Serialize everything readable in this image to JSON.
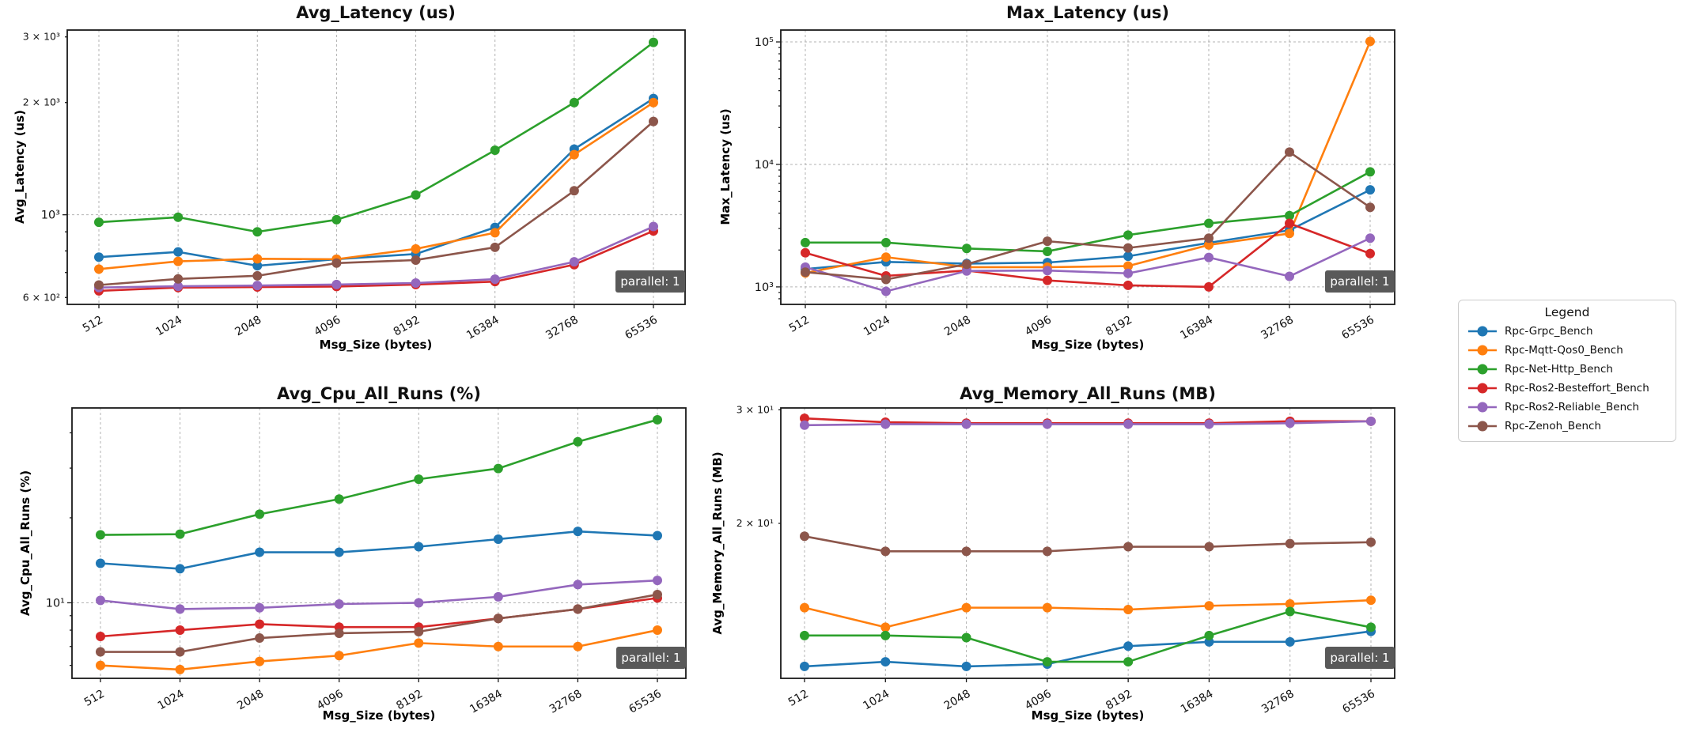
{
  "figure": {
    "background": "#ffffff",
    "title_color": "#1f3d99",
    "axis_color": "#1a1a1a",
    "grid_color": "#b3b3b3"
  },
  "annotation_badge": {
    "text": "parallel: 1",
    "bg": "#595959",
    "fg": "#ffffff"
  },
  "legend": {
    "title": "Legend",
    "entries": [
      {
        "label": "Rpc-Grpc_Bench",
        "color": "#1f77b4"
      },
      {
        "label": "Rpc-Mqtt-Qos0_Bench",
        "color": "#ff7f0e"
      },
      {
        "label": "Rpc-Net-Http_Bench",
        "color": "#2ca02c"
      },
      {
        "label": "Rpc-Ros2-Besteffort_Bench",
        "color": "#d62728"
      },
      {
        "label": "Rpc-Ros2-Reliable_Bench",
        "color": "#9467bd"
      },
      {
        "label": "Rpc-Zenoh_Bench",
        "color": "#8c564b"
      }
    ]
  },
  "chart_data": [
    {
      "type": "line",
      "title": "Avg_Latency (us)",
      "xlabel": "Msg_Size (bytes)",
      "ylabel": "Avg_Latency (us)",
      "x_categories": [
        "512",
        "1024",
        "2048",
        "4096",
        "8192",
        "16384",
        "32768",
        "65536"
      ],
      "yscale": "log",
      "ylim": [
        575,
        3130
      ],
      "yticks": [
        {
          "value": 3000,
          "label": "3 × 10³",
          "minor": true
        },
        {
          "value": 2000,
          "label": "2 × 10³",
          "minor": true
        },
        {
          "value": 1000,
          "label": "10³",
          "minor": false
        },
        {
          "value": 600,
          "label": "6 × 10²",
          "minor": true
        }
      ],
      "grid": "major-dashed",
      "annotation": "parallel: 1",
      "series": [
        {
          "name": "Rpc-Grpc_Bench",
          "color": "#1f77b4",
          "values": [
            770,
            795,
            730,
            760,
            785,
            925,
            1500,
            2050
          ]
        },
        {
          "name": "Rpc-Mqtt-Qos0_Bench",
          "color": "#ff7f0e",
          "values": [
            715,
            750,
            762,
            760,
            810,
            895,
            1450,
            2000
          ]
        },
        {
          "name": "Rpc-Net-Http_Bench",
          "color": "#2ca02c",
          "values": [
            955,
            985,
            900,
            970,
            1130,
            1490,
            2000,
            2900
          ]
        },
        {
          "name": "Rpc-Ros2-Besteffort_Bench",
          "color": "#d62728",
          "values": [
            625,
            638,
            640,
            642,
            650,
            662,
            735,
            905
          ]
        },
        {
          "name": "Rpc-Ros2-Reliable_Bench",
          "color": "#9467bd",
          "values": [
            638,
            643,
            646,
            650,
            656,
            672,
            748,
            930
          ]
        },
        {
          "name": "Rpc-Zenoh_Bench",
          "color": "#8c564b",
          "values": [
            648,
            673,
            686,
            742,
            756,
            818,
            1160,
            1780
          ]
        }
      ]
    },
    {
      "type": "line",
      "title": "Max_Latency (us)",
      "xlabel": "Msg_Size (bytes)",
      "ylabel": "Max_Latency (us)",
      "x_categories": [
        "512",
        "1024",
        "2048",
        "4096",
        "8192",
        "16384",
        "32768",
        "65536"
      ],
      "yscale": "log",
      "ylim": [
        720,
        125000
      ],
      "yticks": [
        {
          "value": 100000,
          "label": "10⁵",
          "minor": false
        },
        {
          "value": 10000,
          "label": "10⁴",
          "minor": false
        },
        {
          "value": 1000,
          "label": "10³",
          "minor": false
        }
      ],
      "grid": "major-dashed",
      "annotation": "parallel: 1",
      "series": [
        {
          "name": "Rpc-Grpc_Bench",
          "color": "#1f77b4",
          "values": [
            1400,
            1600,
            1550,
            1580,
            1780,
            2290,
            2900,
            6200
          ]
        },
        {
          "name": "Rpc-Mqtt-Qos0_Bench",
          "color": "#ff7f0e",
          "values": [
            1300,
            1750,
            1450,
            1450,
            1480,
            2200,
            2730,
            101000
          ]
        },
        {
          "name": "Rpc-Net-Http_Bench",
          "color": "#2ca02c",
          "values": [
            2300,
            2300,
            2060,
            1950,
            2650,
            3300,
            3820,
            8700
          ]
        },
        {
          "name": "Rpc-Ros2-Besteffort_Bench",
          "color": "#d62728",
          "values": [
            1900,
            1230,
            1360,
            1130,
            1030,
            1000,
            3300,
            1870
          ]
        },
        {
          "name": "Rpc-Ros2-Reliable_Bench",
          "color": "#9467bd",
          "values": [
            1450,
            920,
            1350,
            1360,
            1290,
            1740,
            1220,
            2500
          ]
        },
        {
          "name": "Rpc-Zenoh_Bench",
          "color": "#8c564b",
          "values": [
            1320,
            1150,
            1530,
            2360,
            2080,
            2500,
            12600,
            4460
          ]
        }
      ]
    },
    {
      "type": "line",
      "title": "Avg_Cpu_All_Runs (%)",
      "xlabel": "Msg_Size (bytes)",
      "ylabel": "Avg_Cpu_All_Runs (%)",
      "x_categories": [
        "512",
        "1024",
        "2048",
        "4096",
        "8192",
        "16384",
        "32768",
        "65536"
      ],
      "yscale": "log",
      "ylim": [
        5.4,
        49
      ],
      "yticks": [
        {
          "value": 10,
          "label": "10¹",
          "minor": false
        }
      ],
      "grid": "major-dashed",
      "annotation": "parallel: 1",
      "series": [
        {
          "name": "Rpc-Grpc_Bench",
          "color": "#1f77b4",
          "values": [
            13.8,
            13.2,
            15.1,
            15.1,
            15.8,
            16.8,
            17.9,
            17.3
          ]
        },
        {
          "name": "Rpc-Mqtt-Qos0_Bench",
          "color": "#ff7f0e",
          "values": [
            6.0,
            5.8,
            6.2,
            6.5,
            7.2,
            7.0,
            7.0,
            8.0
          ]
        },
        {
          "name": "Rpc-Net-Http_Bench",
          "color": "#2ca02c",
          "values": [
            17.4,
            17.5,
            20.6,
            23.3,
            27.4,
            29.9,
            37.2,
            44.5
          ]
        },
        {
          "name": "Rpc-Ros2-Besteffort_Bench",
          "color": "#d62728",
          "values": [
            7.6,
            8.0,
            8.4,
            8.2,
            8.2,
            8.8,
            9.5,
            10.4
          ]
        },
        {
          "name": "Rpc-Ros2-Reliable_Bench",
          "color": "#9467bd",
          "values": [
            10.2,
            9.5,
            9.6,
            9.9,
            10.0,
            10.5,
            11.6,
            12.0
          ]
        },
        {
          "name": "Rpc-Zenoh_Bench",
          "color": "#8c564b",
          "values": [
            6.7,
            6.7,
            7.5,
            7.8,
            7.9,
            8.8,
            9.5,
            10.7
          ]
        }
      ]
    },
    {
      "type": "line",
      "title": "Avg_Memory_All_Runs (MB)",
      "xlabel": "Msg_Size (bytes)",
      "ylabel": "Avg_Memory_All_Runs (MB)",
      "x_categories": [
        "512",
        "1024",
        "2048",
        "4096",
        "8192",
        "16384",
        "32768",
        "65536"
      ],
      "yscale": "log",
      "ylim": [
        11.5,
        30.2
      ],
      "yticks": [
        {
          "value": 30,
          "label": "3 × 10¹",
          "minor": true
        },
        {
          "value": 20,
          "label": "2 × 10¹",
          "minor": true
        }
      ],
      "grid": "major-dashed",
      "annotation": "parallel: 1",
      "series": [
        {
          "name": "Rpc-Grpc_Bench",
          "color": "#1f77b4",
          "values": [
            12.0,
            12.2,
            12.0,
            12.1,
            12.9,
            13.1,
            13.1,
            13.6
          ]
        },
        {
          "name": "Rpc-Mqtt-Qos0_Bench",
          "color": "#ff7f0e",
          "values": [
            14.8,
            13.8,
            14.8,
            14.8,
            14.7,
            14.9,
            15.0,
            15.2
          ]
        },
        {
          "name": "Rpc-Net-Http_Bench",
          "color": "#2ca02c",
          "values": [
            13.4,
            13.4,
            13.3,
            12.2,
            12.2,
            13.4,
            14.6,
            13.8
          ]
        },
        {
          "name": "Rpc-Ros2-Besteffort_Bench",
          "color": "#d62728",
          "values": [
            29.1,
            28.7,
            28.6,
            28.6,
            28.6,
            28.6,
            28.8,
            28.8
          ]
        },
        {
          "name": "Rpc-Ros2-Reliable_Bench",
          "color": "#9467bd",
          "values": [
            28.4,
            28.5,
            28.5,
            28.5,
            28.5,
            28.5,
            28.6,
            28.8
          ]
        },
        {
          "name": "Rpc-Zenoh_Bench",
          "color": "#8c564b",
          "values": [
            19.1,
            18.1,
            18.1,
            18.1,
            18.4,
            18.4,
            18.6,
            18.7
          ]
        }
      ]
    }
  ]
}
